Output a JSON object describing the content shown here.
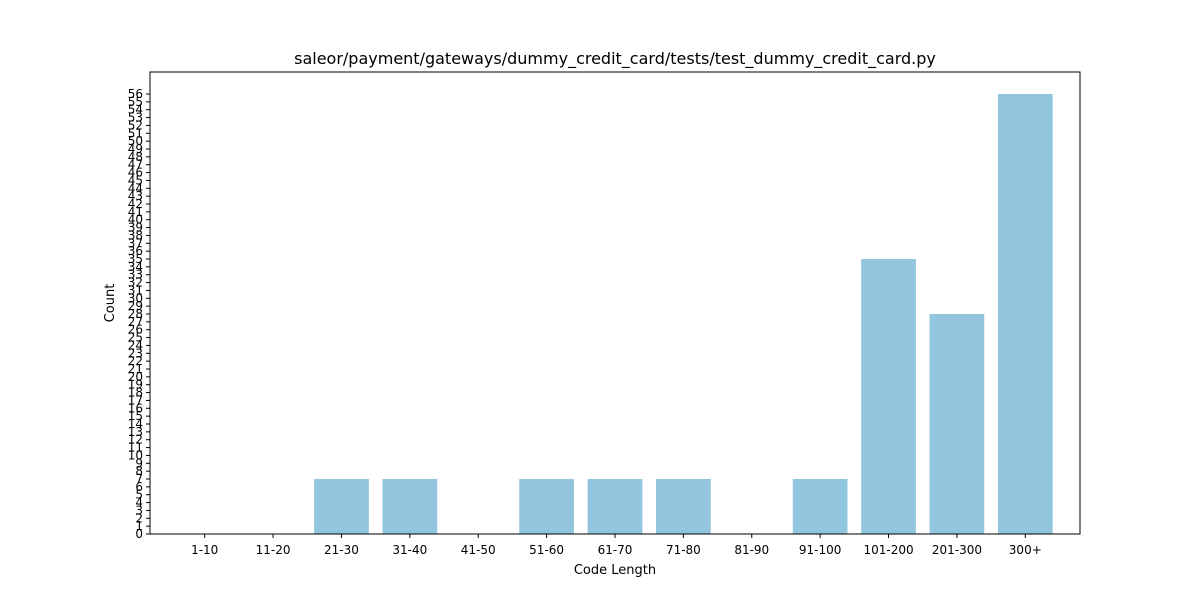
{
  "chart_data": {
    "type": "bar",
    "title": "saleor/payment/gateways/dummy_credit_card/tests/test_dummy_credit_card.py",
    "xlabel": "Code Length",
    "ylabel": "Count",
    "categories": [
      "1-10",
      "11-20",
      "21-30",
      "31-40",
      "41-50",
      "51-60",
      "61-70",
      "71-80",
      "81-90",
      "91-100",
      "101-200",
      "201-300",
      "300+"
    ],
    "values": [
      0,
      0,
      7,
      7,
      0,
      7,
      7,
      7,
      0,
      7,
      35,
      28,
      56
    ],
    "ylim": [
      0,
      58.8
    ],
    "yticks": [
      0,
      1,
      2,
      3,
      4,
      5,
      6,
      7,
      8,
      9,
      10,
      11,
      12,
      13,
      14,
      15,
      16,
      17,
      18,
      19,
      20,
      21,
      22,
      23,
      24,
      25,
      26,
      27,
      28,
      29,
      30,
      31,
      32,
      33,
      34,
      35,
      36,
      37,
      38,
      39,
      40,
      41,
      42,
      43,
      44,
      45,
      46,
      47,
      48,
      49,
      50,
      51,
      52,
      53,
      54,
      55,
      56
    ],
    "bar_color": "#92c5de",
    "grid": false,
    "legend": "none"
  }
}
